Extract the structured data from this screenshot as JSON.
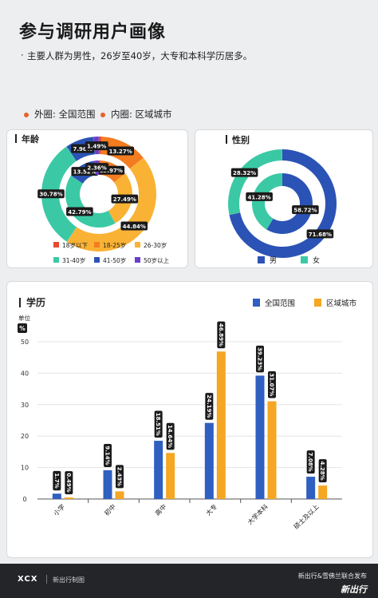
{
  "header": {
    "title": "参与调研用户画像",
    "subtitle": "主要人群为男性，26岁至40岁，大专和本科学历居多。"
  },
  "ring_legend": {
    "outer": "外圈: 全国范围",
    "inner": "内圈: 区域城市"
  },
  "colors": {
    "blue": "#2e5fc1",
    "orange": "#f5a623",
    "red": "#e8492f",
    "orange2": "#f47c20",
    "yellow": "#f9b233",
    "teal": "#3bc9a5",
    "navy": "#2b53b5",
    "purple": "#6a3fc7"
  },
  "chart_data": [
    {
      "type": "pie",
      "title": "年龄",
      "ring_labels": [
        "全国范围",
        "区域城市"
      ],
      "categories": [
        "18岁以下",
        "18-25岁",
        "26-30岁",
        "31-40岁",
        "41-50岁",
        "50岁以上"
      ],
      "colors": [
        "#e8492f",
        "#f47c20",
        "#f9b233",
        "#3bc9a5",
        "#2b53b5",
        "#6a3fc7"
      ],
      "series": [
        {
          "name": "全国范围",
          "values": [
            0.79,
            13.27,
            44.84,
            30.78,
            7.96,
            1.49
          ]
        },
        {
          "name": "区域城市",
          "values": [
            0.74,
            13.97,
            27.49,
            42.79,
            13.52,
            2.36
          ]
        }
      ],
      "legend": "bottom"
    },
    {
      "type": "pie",
      "title": "性别",
      "ring_labels": [
        "全国范围",
        "区域城市"
      ],
      "categories": [
        "男",
        "女"
      ],
      "colors": [
        "#2b53b5",
        "#3bc9a5"
      ],
      "series": [
        {
          "name": "全国范围",
          "values": [
            71.68,
            28.32
          ]
        },
        {
          "name": "区域城市",
          "values": [
            58.72,
            41.28
          ]
        }
      ],
      "legend": "bottom"
    },
    {
      "type": "bar",
      "title": "学历",
      "ylabel": "单位",
      "ylabel_unit": "%",
      "categories": [
        "小学",
        "初中",
        "高中",
        "大专",
        "大学本科",
        "硕士及以上"
      ],
      "series": [
        {
          "name": "全国范围",
          "values": [
            1.7,
            9.14,
            18.51,
            24.19,
            39.23,
            7.08
          ],
          "labels": [
            "1.7%",
            "9.14%",
            "18.51%",
            "24.19%",
            "39.23%",
            "7.08%"
          ],
          "color": "#2e5fc1"
        },
        {
          "name": "区域城市",
          "values": [
            0.49,
            2.43,
            14.64,
            46.89,
            31.07,
            4.28
          ],
          "labels": [
            "0.49%",
            "2.43%",
            "14.64%",
            "46.89%",
            "31.07%",
            "4.28%"
          ],
          "color": "#f5a623"
        }
      ],
      "ylim": [
        0,
        50
      ],
      "yticks": [
        "0",
        "10",
        "20",
        "30",
        "40",
        "50"
      ],
      "grid": true,
      "legend": "top-right"
    }
  ],
  "footer": {
    "logo": "XCX",
    "brand": "新出行制图",
    "right_line1": "新出行&雪佛兰联合发布",
    "right_line2": "新出行"
  }
}
